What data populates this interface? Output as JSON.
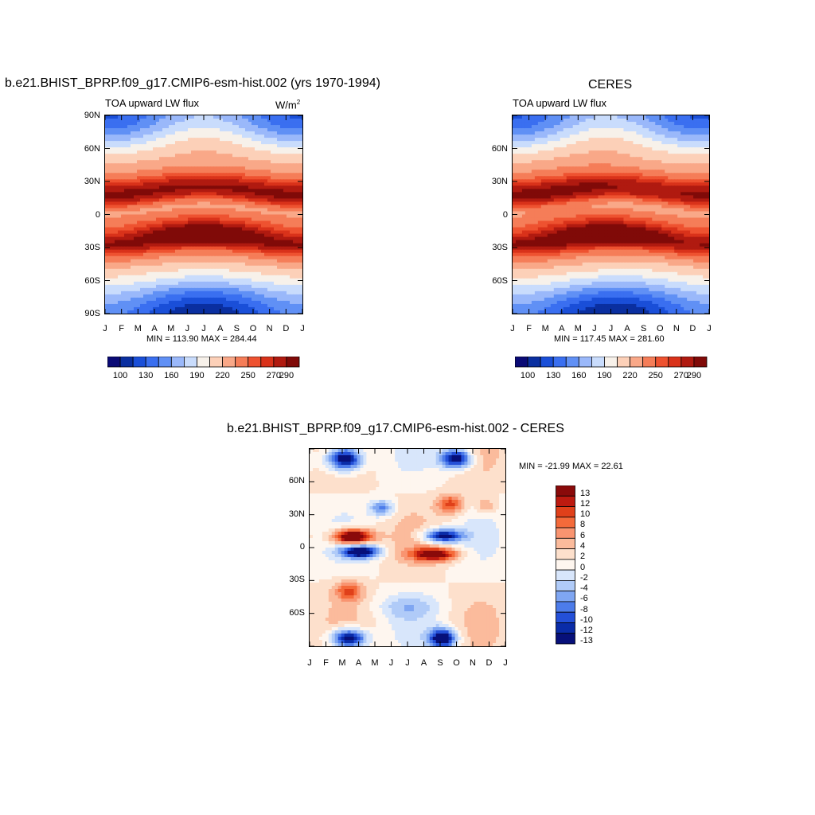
{
  "chart_data": [
    {
      "type": "heatmap",
      "title": "b.e21.BHIST_BPRP.f09_g17.CMIP6-esm-hist.002 (yrs 1970-1994)",
      "left_subtitle": "TOA upward LW flux",
      "units_label": "W/m",
      "units_superscript": "2",
      "x_ticks": [
        "J",
        "F",
        "M",
        "A",
        "M",
        "J",
        "J",
        "A",
        "S",
        "O",
        "N",
        "D",
        "J"
      ],
      "y_ticks": [
        "90N",
        "60N",
        "30N",
        "0",
        "30S",
        "60S",
        "90S"
      ],
      "stats": "MIN = 113.90 MAX = 284.44",
      "colorbar_labels": [
        "100",
        "130",
        "160",
        "190",
        "220",
        "250",
        "270",
        "290"
      ]
    },
    {
      "type": "heatmap",
      "title": "CERES",
      "left_subtitle": "TOA upward LW flux",
      "x_ticks": [
        "J",
        "F",
        "M",
        "A",
        "M",
        "J",
        "J",
        "A",
        "S",
        "O",
        "N",
        "D",
        "J"
      ],
      "y_ticks": [
        "60N",
        "30N",
        "0",
        "30S",
        "60S"
      ],
      "stats": "MIN = 117.45 MAX = 281.60",
      "colorbar_labels": [
        "100",
        "130",
        "160",
        "190",
        "220",
        "250",
        "270",
        "290"
      ]
    },
    {
      "type": "heatmap",
      "title": "b.e21.BHIST_BPRP.f09_g17.CMIP6-esm-hist.002 - CERES",
      "x_ticks": [
        "J",
        "F",
        "M",
        "A",
        "M",
        "J",
        "J",
        "A",
        "S",
        "O",
        "N",
        "D",
        "J"
      ],
      "y_ticks": [
        "60N",
        "30N",
        "0",
        "30S",
        "60S"
      ],
      "stats": "MIN = -21.99 MAX =  22.61",
      "colorbar_labels": [
        "13",
        "12",
        "10",
        "8",
        "6",
        "4",
        "2",
        "0",
        "-2",
        "-4",
        "-6",
        "-8",
        "-10",
        "-12",
        "-13"
      ]
    }
  ],
  "colors": {
    "seq": [
      "#0a0a75",
      "#0a2fa0",
      "#1a4fd8",
      "#3a6ff0",
      "#6090f5",
      "#9ab8fa",
      "#c9dcfc",
      "#f7f1ea",
      "#fcd0b8",
      "#f9a888",
      "#f57d58",
      "#ee5230",
      "#d9321a",
      "#b01a10",
      "#800a08"
    ],
    "div": [
      "#8a0a0a",
      "#bd1a10",
      "#e0401a",
      "#f46a3a",
      "#f99470",
      "#fbbb9c",
      "#fde0cc",
      "#fef6ef",
      "#d8e6fb",
      "#b0cbf8",
      "#7fa6f2",
      "#4d7cea",
      "#2450d8",
      "#0a2ca8",
      "#07107a"
    ]
  }
}
